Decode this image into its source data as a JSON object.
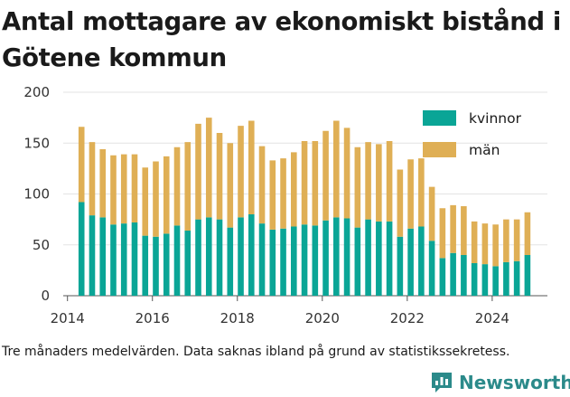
{
  "title": "Antal mottagare av ekonomiskt bistånd i Götene kommun",
  "footnote": "Tre månaders medelvärden. Data saknas ibland på grund av statistikssekretess.",
  "brand": {
    "name": "Newsworthy",
    "logo_icon": "bar-chart-speech-bubble-icon",
    "color": "#2b8a8a"
  },
  "chart_data": {
    "type": "bar",
    "stacked": true,
    "ylim": [
      0,
      200
    ],
    "y_ticks": [
      0,
      50,
      100,
      150,
      200
    ],
    "x_ticks": [
      2014,
      2016,
      2018,
      2020,
      2022,
      2024
    ],
    "xlim": [
      2013.9,
      2025.3
    ],
    "grid": true,
    "legend_position": "top-right",
    "x": [
      2014.33,
      2014.58,
      2014.83,
      2015.08,
      2015.33,
      2015.58,
      2015.83,
      2016.08,
      2016.33,
      2016.58,
      2016.83,
      2017.08,
      2017.33,
      2017.58,
      2017.83,
      2018.08,
      2018.33,
      2018.58,
      2018.83,
      2019.08,
      2019.33,
      2019.58,
      2019.83,
      2020.08,
      2020.33,
      2020.58,
      2020.83,
      2021.08,
      2021.33,
      2021.58,
      2021.83,
      2022.08,
      2022.33,
      2022.58,
      2022.83,
      2023.08,
      2023.33,
      2023.58,
      2023.83,
      2024.08,
      2024.33,
      2024.58,
      2024.83
    ],
    "series": [
      {
        "name": "kvinnor",
        "color": "#0aa596",
        "values": [
          92,
          79,
          77,
          70,
          71,
          72,
          59,
          58,
          61,
          69,
          64,
          75,
          77,
          75,
          67,
          77,
          80,
          71,
          65,
          66,
          68,
          70,
          69,
          74,
          77,
          76,
          67,
          75,
          73,
          73,
          58,
          66,
          68,
          54,
          37,
          42,
          40,
          32,
          31,
          29,
          33,
          34,
          40
        ]
      },
      {
        "name": "män",
        "color": "#dfaf55",
        "values": [
          74,
          72,
          67,
          68,
          68,
          67,
          67,
          74,
          76,
          77,
          87,
          94,
          98,
          85,
          83,
          90,
          92,
          76,
          68,
          69,
          73,
          82,
          83,
          88,
          95,
          89,
          79,
          76,
          76,
          79,
          66,
          68,
          67,
          53,
          49,
          47,
          48,
          41,
          40,
          41,
          42,
          41,
          42
        ]
      }
    ]
  }
}
